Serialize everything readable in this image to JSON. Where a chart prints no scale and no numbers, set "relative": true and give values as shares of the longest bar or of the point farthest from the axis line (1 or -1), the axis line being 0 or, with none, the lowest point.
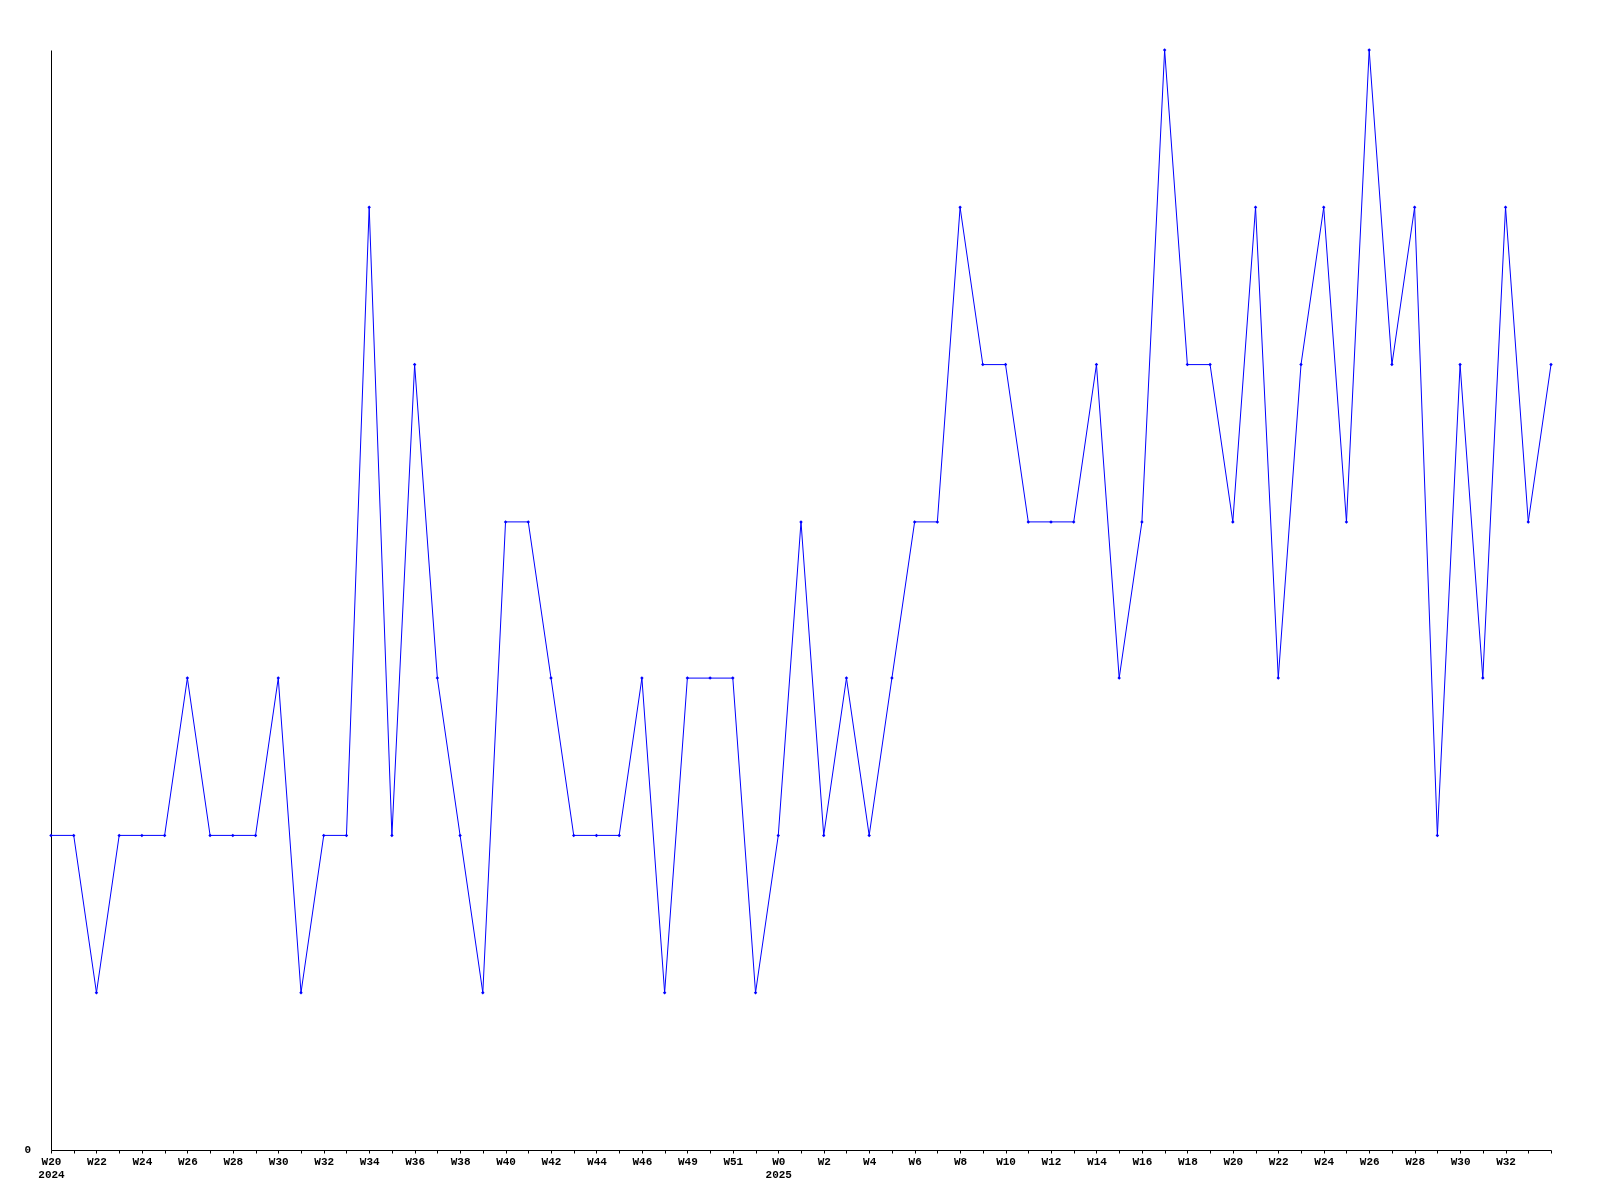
{
  "chart_data": {
    "type": "line",
    "relative": true,
    "marker": "diamond",
    "grid": false,
    "categories": [
      "W20\n2024",
      null,
      "W22",
      null,
      "W24",
      null,
      "W26",
      null,
      "W28",
      null,
      "W30",
      null,
      "W32",
      null,
      "W34",
      null,
      "W36",
      null,
      "W38",
      null,
      "W40",
      null,
      "W42",
      null,
      "W44",
      null,
      "W46",
      null,
      "W49",
      null,
      "W51",
      null,
      "W0\n2025",
      null,
      "W2",
      null,
      "W4",
      null,
      "W6",
      null,
      "W8",
      null,
      "W10",
      null,
      "W12",
      null,
      "W14",
      null,
      "W16",
      null,
      "W18",
      null,
      "W20",
      null,
      "W22",
      null,
      "W24",
      null,
      "W26",
      null,
      "W28",
      null,
      "W30",
      null,
      "W32",
      null,
      null
    ],
    "series": [
      {
        "color": "#0000ff",
        "values": [
          0.286,
          0.286,
          0.143,
          0.286,
          0.286,
          0.286,
          0.429,
          0.286,
          0.286,
          0.286,
          0.429,
          0.143,
          0.286,
          0.286,
          0.857,
          0.286,
          0.714,
          0.429,
          0.286,
          0.143,
          0.571,
          0.571,
          0.429,
          0.286,
          0.286,
          0.286,
          0.429,
          0.143,
          0.429,
          0.429,
          0.429,
          0.143,
          0.286,
          0.571,
          0.286,
          0.429,
          0.286,
          0.429,
          0.571,
          0.571,
          0.857,
          0.714,
          0.714,
          0.571,
          0.571,
          0.571,
          0.714,
          0.429,
          0.571,
          1,
          0.714,
          0.714,
          0.571,
          0.857,
          0.429,
          0.714,
          0.857,
          0.571,
          1,
          0.714,
          0.857,
          0.286,
          0.714,
          0.429,
          0.857,
          0.571,
          0.714
        ]
      }
    ],
    "annotations": [
      "0"
    ]
  }
}
